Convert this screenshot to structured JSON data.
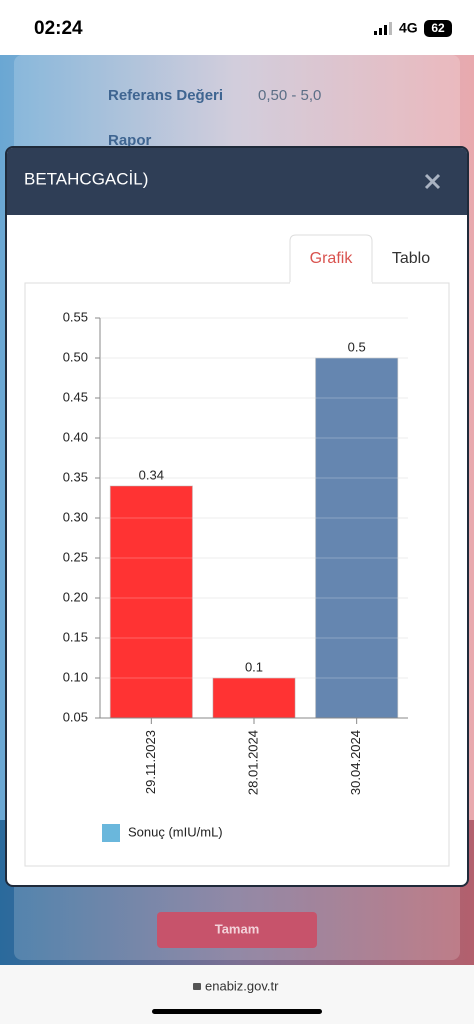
{
  "status_bar": {
    "time": "02:24",
    "network": "4G",
    "battery": "62"
  },
  "background": {
    "rows": [
      {
        "label": "Referans Değeri",
        "value": "0,50 - 5,0"
      },
      {
        "label": "Rapor"
      }
    ],
    "button": "Tamam"
  },
  "modal": {
    "title": "BETAHCGACİL)",
    "tabs": [
      "Grafik",
      "Tablo"
    ]
  },
  "chart_data": {
    "type": "bar",
    "categories": [
      "29.11.2023",
      "28.01.2024",
      "30.04.2024"
    ],
    "series": [
      {
        "name": "Sonuç (mIU/mL)",
        "color": "#6ab7dc",
        "bar_colors": [
          "#ff3333",
          "#ff3333",
          "#6586b0"
        ],
        "values": [
          0.34,
          0.1,
          0.5
        ]
      }
    ],
    "ylim": [
      0.05,
      0.55
    ],
    "yticks": [
      0.05,
      {
        "value": 0.1,
        "label": "0.10"
      },
      0.15,
      {
        "value": 0.2,
        "label": "0.20"
      },
      0.25,
      {
        "value": 0.3,
        "label": "0.30"
      },
      0.35,
      {
        "value": 0.4,
        "label": "0.40"
      },
      0.45,
      {
        "value": 0.5,
        "label": "0.50"
      },
      0.55
    ],
    "grid": true
  },
  "browser": {
    "url": "enabiz.gov.tr"
  }
}
